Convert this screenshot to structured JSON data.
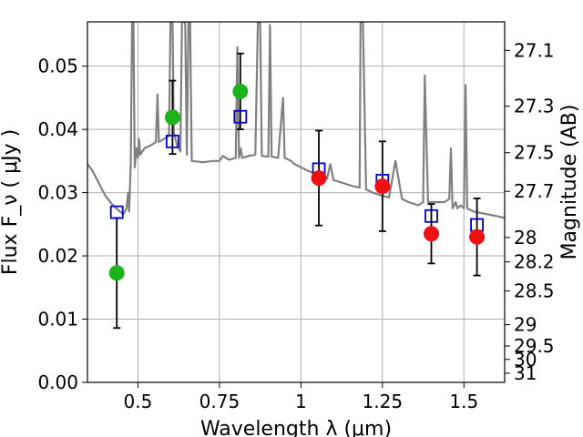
{
  "chart_data": {
    "type": "scatter",
    "title": "",
    "xlabel": "Wavelength  λ (μm)",
    "ylabel": "Flux  F_ν  ( μJy )",
    "y2label": "Magnitude (AB)",
    "xlim": [
      0.345,
      1.625
    ],
    "ylim": [
      0.0,
      0.057
    ],
    "grid": true,
    "x_ticks": [
      {
        "value": 0.5,
        "label": "0.5"
      },
      {
        "value": 0.75,
        "label": "0.75"
      },
      {
        "value": 1.0,
        "label": "1"
      },
      {
        "value": 1.25,
        "label": "1.25"
      },
      {
        "value": 1.5,
        "label": "1.5"
      }
    ],
    "y_ticks": [
      {
        "value": 0.0,
        "label": "0.00"
      },
      {
        "value": 0.01,
        "label": "0.01"
      },
      {
        "value": 0.02,
        "label": "0.02"
      },
      {
        "value": 0.03,
        "label": "0.03"
      },
      {
        "value": 0.04,
        "label": "0.04"
      },
      {
        "value": 0.05,
        "label": "0.05"
      }
    ],
    "y2_ticks": [
      {
        "mag": 27.1,
        "label": "27.1"
      },
      {
        "mag": 27.3,
        "label": "27.3"
      },
      {
        "mag": 27.5,
        "label": "27.5"
      },
      {
        "mag": 27.7,
        "label": "27.7"
      },
      {
        "mag": 28,
        "label": "28"
      },
      {
        "mag": 28.2,
        "label": "28.2"
      },
      {
        "mag": 28.5,
        "label": "28.5"
      },
      {
        "mag": 29,
        "label": "29"
      },
      {
        "mag": 29.5,
        "label": "29.5"
      },
      {
        "mag": 30,
        "label": "30"
      },
      {
        "mag": 31,
        "label": "31"
      }
    ],
    "series": [
      {
        "marker": "circle",
        "color": "#1db31d",
        "points": [
          {
            "x": 0.435,
            "y": 0.0173,
            "yerr": 0.0087
          },
          {
            "x": 0.606,
            "y": 0.0419,
            "yerr": 0.0058
          },
          {
            "x": 0.814,
            "y": 0.046,
            "yerr": 0.006
          }
        ]
      },
      {
        "marker": "circle",
        "color": "#ee1111",
        "points": [
          {
            "x": 1.055,
            "y": 0.0323,
            "yerr": 0.0075
          },
          {
            "x": 1.25,
            "y": 0.031,
            "yerr": 0.0071
          },
          {
            "x": 1.4,
            "y": 0.0235,
            "yerr": 0.0047
          },
          {
            "x": 1.54,
            "y": 0.023,
            "yerr": 0.0061
          }
        ]
      },
      {
        "marker": "open-square",
        "color": "#0000cc",
        "points": [
          {
            "x": 0.435,
            "y": 0.0269
          },
          {
            "x": 0.606,
            "y": 0.0381
          },
          {
            "x": 0.814,
            "y": 0.042
          },
          {
            "x": 1.055,
            "y": 0.0337
          },
          {
            "x": 1.25,
            "y": 0.0319
          },
          {
            "x": 1.4,
            "y": 0.0263
          },
          {
            "x": 1.54,
            "y": 0.0249
          }
        ]
      }
    ],
    "model_spectrum": {
      "color": "#808080",
      "points": [
        [
          0.345,
          0.0345
        ],
        [
          0.36,
          0.0335
        ],
        [
          0.38,
          0.0315
        ],
        [
          0.4,
          0.0295
        ],
        [
          0.42,
          0.0282
        ],
        [
          0.44,
          0.0272
        ],
        [
          0.455,
          0.0266
        ],
        [
          0.465,
          0.0275
        ],
        [
          0.47,
          0.03
        ],
        [
          0.473,
          0.027
        ],
        [
          0.478,
          0.035
        ],
        [
          0.482,
          0.057
        ],
        [
          0.486,
          0.057
        ],
        [
          0.49,
          0.034
        ],
        [
          0.495,
          0.037
        ],
        [
          0.5,
          0.0355
        ],
        [
          0.503,
          0.0385
        ],
        [
          0.507,
          0.036
        ],
        [
          0.52,
          0.037
        ],
        [
          0.54,
          0.0375
        ],
        [
          0.555,
          0.038
        ],
        [
          0.56,
          0.0455
        ],
        [
          0.564,
          0.038
        ],
        [
          0.58,
          0.0385
        ],
        [
          0.595,
          0.039
        ],
        [
          0.6,
          0.057
        ],
        [
          0.606,
          0.057
        ],
        [
          0.61,
          0.0395
        ],
        [
          0.62,
          0.0375
        ],
        [
          0.63,
          0.0365
        ],
        [
          0.635,
          0.057
        ],
        [
          0.645,
          0.057
        ],
        [
          0.65,
          0.036
        ],
        [
          0.655,
          0.057
        ],
        [
          0.66,
          0.057
        ],
        [
          0.665,
          0.035
        ],
        [
          0.7,
          0.0348
        ],
        [
          0.73,
          0.035
        ],
        [
          0.75,
          0.035
        ],
        [
          0.76,
          0.0358
        ],
        [
          0.78,
          0.0352
        ],
        [
          0.8,
          0.0355
        ],
        [
          0.805,
          0.053
        ],
        [
          0.81,
          0.0355
        ],
        [
          0.815,
          0.037
        ],
        [
          0.82,
          0.0355
        ],
        [
          0.84,
          0.0358
        ],
        [
          0.86,
          0.036
        ],
        [
          0.868,
          0.057
        ],
        [
          0.875,
          0.057
        ],
        [
          0.88,
          0.0358
        ],
        [
          0.9,
          0.0357
        ],
        [
          0.905,
          0.0565
        ],
        [
          0.91,
          0.0357
        ],
        [
          0.93,
          0.0355
        ],
        [
          0.945,
          0.045
        ],
        [
          0.95,
          0.0355
        ],
        [
          0.97,
          0.035
        ],
        [
          0.98,
          0.0345
        ],
        [
          1.0,
          0.034
        ],
        [
          1.02,
          0.0335
        ],
        [
          1.05,
          0.0328
        ],
        [
          1.08,
          0.0322
        ],
        [
          1.09,
          0.0345
        ],
        [
          1.1,
          0.032
        ],
        [
          1.13,
          0.0315
        ],
        [
          1.16,
          0.031
        ],
        [
          1.18,
          0.0308
        ],
        [
          1.183,
          0.057
        ],
        [
          1.19,
          0.057
        ],
        [
          1.2,
          0.0305
        ],
        [
          1.22,
          0.03
        ],
        [
          1.25,
          0.0295
        ],
        [
          1.27,
          0.0292
        ],
        [
          1.29,
          0.035
        ],
        [
          1.31,
          0.029
        ],
        [
          1.33,
          0.0285
        ],
        [
          1.36,
          0.028
        ],
        [
          1.375,
          0.0285
        ],
        [
          1.38,
          0.0485
        ],
        [
          1.39,
          0.0285
        ],
        [
          1.41,
          0.0285
        ],
        [
          1.44,
          0.0285
        ],
        [
          1.455,
          0.029
        ],
        [
          1.46,
          0.037
        ],
        [
          1.465,
          0.0275
        ],
        [
          1.475,
          0.0285
        ],
        [
          1.48,
          0.0275
        ],
        [
          1.49,
          0.028
        ],
        [
          1.5,
          0.0275
        ],
        [
          1.505,
          0.047
        ],
        [
          1.51,
          0.0275
        ],
        [
          1.53,
          0.027
        ],
        [
          1.55,
          0.0268
        ],
        [
          1.58,
          0.0265
        ],
        [
          1.6,
          0.0263
        ],
        [
          1.625,
          0.026
        ]
      ]
    }
  }
}
